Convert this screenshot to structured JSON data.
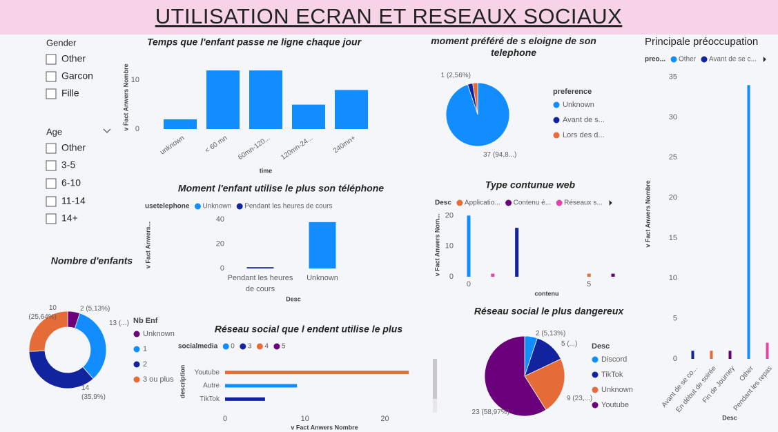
{
  "title": "UTILISATION ECRAN ET RESEAUX SOCIAUX",
  "slicers": [
    {
      "title": "Gender",
      "items": [
        "Other",
        "Garcon",
        "Fille"
      ]
    },
    {
      "title": "Age",
      "items": [
        "Other",
        "3-5",
        "6-10",
        "11-14",
        "14+"
      ]
    }
  ],
  "chart_data": [
    {
      "type": "bar",
      "title": "Temps que l'enfant passe ne ligne chaque jour",
      "categories": [
        "unknown",
        "< 60 mn",
        "60mn-120...",
        "120mn-24...",
        "240mn+"
      ],
      "values": [
        2,
        12,
        12,
        5,
        8
      ],
      "color": "#118dff",
      "ylim": [
        0,
        13
      ],
      "yticks": [
        0,
        10
      ],
      "x_label": "time",
      "y_label": "v Fact Anwers Nombre"
    },
    {
      "type": "pie",
      "title": "moment préféré de s eloigne de son telephone",
      "legend_title": "preference",
      "categories": [
        "Unknown",
        "Avant de s...",
        "Lors des d..."
      ],
      "values": [
        37,
        1,
        1
      ],
      "colors": [
        "#118dff",
        "#12239e",
        "#e66c37"
      ],
      "value_labels": [
        "37 (94,8...)",
        "1 (2,56%)",
        null
      ]
    },
    {
      "type": "bar",
      "title": "Principale préoccupation",
      "legend_title": "preo...",
      "categories": [
        "Avant de se co...",
        "En début de soirée",
        "Fin de Journey",
        "Other",
        "Pendant les repas"
      ],
      "series": [
        {
          "name": "Other",
          "color": "#118dff",
          "values": [
            null,
            null,
            null,
            34,
            null
          ]
        },
        {
          "name": "Avant de se c...",
          "color": "#12239e",
          "values": [
            1,
            null,
            null,
            null,
            null
          ]
        },
        {
          "color": "#e66c37",
          "values": [
            null,
            1,
            null,
            null,
            null
          ]
        },
        {
          "color": "#6b007b",
          "values": [
            null,
            null,
            1,
            null,
            null
          ]
        },
        {
          "color": "#e044a7",
          "values": [
            null,
            null,
            null,
            null,
            2
          ]
        }
      ],
      "ylim": [
        0,
        36
      ],
      "yticks": [
        0,
        5,
        10,
        15,
        20,
        25,
        30,
        35
      ],
      "x_label": "Desc",
      "y_label": "v Fact Anwers Nombre"
    },
    {
      "type": "bar",
      "title": "Moment l'enfant utilise le plus son téléphone",
      "legend_title": "usetelephone",
      "categories": [
        "Pendant les heures de cours",
        "Unknown"
      ],
      "series": [
        {
          "name": "Unknown",
          "color": "#118dff",
          "values": [
            null,
            38
          ]
        },
        {
          "name": "Pendant les heures de cours",
          "color": "#12239e",
          "values": [
            1,
            null
          ]
        }
      ],
      "ylim": [
        0,
        43
      ],
      "yticks": [
        0,
        20,
        40
      ],
      "x_label": "Desc",
      "y_label": "v Fact Anwers..."
    },
    {
      "type": "donut",
      "title": "Nombre d'enfants",
      "legend_title": "Nb Enf",
      "categories": [
        "Unknown",
        "1",
        "2",
        "3 ou plus"
      ],
      "values": [
        2,
        13,
        14,
        10
      ],
      "colors": [
        "#6b007b",
        "#118dff",
        "#12239e",
        "#e66c37"
      ],
      "value_labels": [
        "2 (5,13%)",
        "13 (...)",
        "14 (35,9%)",
        "10 (25,64%)"
      ]
    },
    {
      "type": "bar",
      "title": "Type contunue web",
      "legend_title": "Desc",
      "series": [
        {
          "name": "Applicatio...",
          "color": "#e66c37",
          "x": [
            5
          ],
          "values": [
            1
          ]
        },
        {
          "name": "Contenu é...",
          "color": "#6b007b",
          "x": [
            6
          ],
          "values": [
            1
          ]
        },
        {
          "name": "Réseaux s...",
          "color": "#e044a7",
          "x": [
            1
          ],
          "values": [
            1
          ]
        },
        {
          "color": "#118dff",
          "x": [
            0
          ],
          "values": [
            20
          ]
        },
        {
          "color": "#12239e",
          "x": [
            2
          ],
          "values": [
            16
          ]
        }
      ],
      "xlim": [
        -0.2,
        6.2
      ],
      "xticks": [
        0,
        5
      ],
      "ylim": [
        0,
        21
      ],
      "yticks": [
        0,
        10,
        20
      ],
      "x_label": "contenu",
      "y_label": "v Fact Anwers Nom..."
    },
    {
      "type": "hbar",
      "title": "Réseau social que l endent utilise le plus",
      "legend_title": "socialmedia",
      "categories": [
        "Youtube",
        "Autre",
        "TikTok"
      ],
      "series": [
        {
          "name": "0",
          "color": "#118dff",
          "values": [
            null,
            9,
            null
          ]
        },
        {
          "name": "3",
          "color": "#12239e",
          "values": [
            null,
            null,
            5
          ]
        },
        {
          "name": "4",
          "color": "#e66c37",
          "values": [
            23,
            null,
            null
          ]
        },
        {
          "name": "5",
          "color": "#6b007b",
          "values": [
            null,
            null,
            null
          ]
        }
      ],
      "xlim": [
        0,
        23.5
      ],
      "xticks": [
        0,
        10,
        20
      ],
      "x_label": "v Fact Anwers Nombre",
      "y_label": "description"
    },
    {
      "type": "pie",
      "title": "Réseau social le plus dangereux",
      "legend_title": "Desc",
      "categories": [
        "Discord",
        "TikTok",
        "Unknown",
        "Youtube"
      ],
      "values": [
        2,
        5,
        9,
        23
      ],
      "colors": [
        "#118dff",
        "#12239e",
        "#e66c37",
        "#6b007b"
      ],
      "value_labels": [
        "2 (5,13%)",
        "5 (...)",
        "9 (23,...)",
        "23 (58,97%)"
      ]
    }
  ]
}
